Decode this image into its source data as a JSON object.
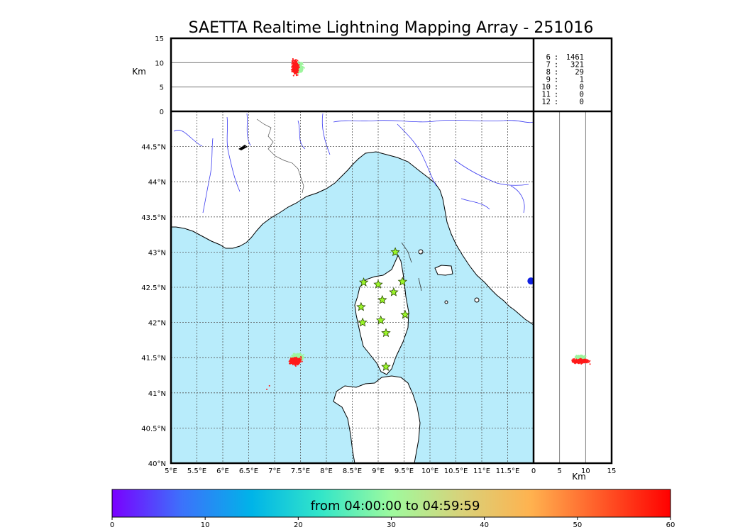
{
  "title": "SAETTA Realtime Lightning Mapping Array - 251016",
  "colorbar": {
    "label": "from 04:00:00 to 04:59:59",
    "ticks": [
      "0",
      "10",
      "20",
      "30",
      "40",
      "50",
      "60"
    ],
    "range": [
      0,
      60
    ],
    "colors": [
      "#7a00ff",
      "#3c72fb",
      "#00b4e8",
      "#33e6c8",
      "#9efa9e",
      "#d8d27a",
      "#ffb24f",
      "#ff5a28",
      "#ff0000"
    ]
  },
  "colors": {
    "sea": "#b8ecfb",
    "land": "#ffffff",
    "coast": "#000000",
    "rivers": "#3a3af0",
    "borders": "#555555",
    "grid": "#555555",
    "station": "#9bf52a",
    "older_points": "#9ef59e",
    "recent_points": "#ff1a1a",
    "marker": "#1020e0"
  },
  "height_panel": {
    "ylabel": "Km",
    "yticks": [
      "15",
      "10",
      "5",
      "0"
    ],
    "yrange": [
      0,
      15
    ],
    "hlines_km": [
      5,
      10
    ]
  },
  "side_panel": {
    "xlabel": "Km",
    "xticks": [
      "0",
      "5",
      "10",
      "15"
    ],
    "xrange": [
      0,
      15
    ],
    "vlines_km": [
      5,
      10
    ]
  },
  "stats": [
    {
      "n": "6",
      "count": "1461",
      "color": "#ff0000"
    },
    {
      "n": "7",
      "count": "321",
      "color": "#000000"
    },
    {
      "n": "8",
      "count": "29",
      "color": "#000000"
    },
    {
      "n": "9",
      "count": "1",
      "color": "#000000"
    },
    {
      "n": "10",
      "count": "0",
      "color": "#000000"
    },
    {
      "n": "11",
      "count": "0",
      "color": "#000000"
    },
    {
      "n": "12",
      "count": "0",
      "color": "#000000"
    }
  ],
  "map": {
    "lon_range": [
      5.0,
      12.0
    ],
    "lat_range": [
      40.0,
      45.0
    ],
    "lon_ticks": [
      "5°E",
      "5.5°E",
      "6°E",
      "6.5°E",
      "7°E",
      "7.5°E",
      "8°E",
      "8.5°E",
      "9°E",
      "9.5°E",
      "10°E",
      "10.5°E",
      "11°E",
      "11.5°E"
    ],
    "lat_ticks": [
      "40°N",
      "40.5°N",
      "41°N",
      "41.5°N",
      "42°N",
      "42.5°N",
      "43°N",
      "43.5°N",
      "44°N",
      "44.5°N"
    ],
    "stations": [
      {
        "lon": 9.33,
        "lat": 43.0
      },
      {
        "lon": 8.72,
        "lat": 42.57
      },
      {
        "lon": 9.0,
        "lat": 42.54
      },
      {
        "lon": 9.47,
        "lat": 42.58
      },
      {
        "lon": 9.08,
        "lat": 42.32
      },
      {
        "lon": 9.3,
        "lat": 42.43
      },
      {
        "lon": 8.67,
        "lat": 42.22
      },
      {
        "lon": 9.52,
        "lat": 42.11
      },
      {
        "lon": 9.05,
        "lat": 42.03
      },
      {
        "lon": 8.7,
        "lat": 42.0
      },
      {
        "lon": 9.15,
        "lat": 41.85
      },
      {
        "lon": 9.15,
        "lat": 41.37
      }
    ],
    "cluster": {
      "lon": 7.4,
      "lat": 41.45
    },
    "marker": {
      "lon": 11.95,
      "lat": 42.59
    }
  }
}
